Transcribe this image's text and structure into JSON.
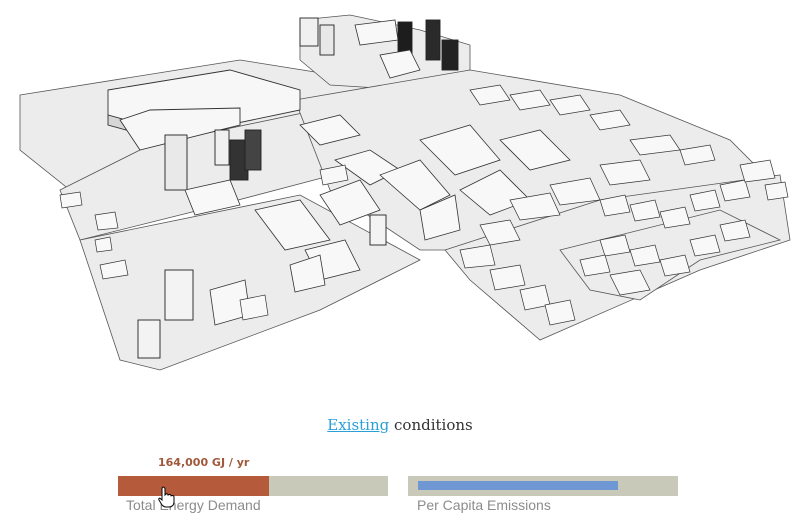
{
  "scene": {
    "description_icon": "3d-city-block-model"
  },
  "caption": {
    "link_text": "Existing",
    "rest_text": " conditions"
  },
  "metrics": {
    "energy": {
      "label": "Total Energy Demand",
      "value_text": "164,000 GJ / yr",
      "fill_fraction": 0.56,
      "color": "#b65a3c"
    },
    "emissions": {
      "label": "Per Capita Emissions",
      "fill_fraction": 0.74,
      "color": "#6f97d3"
    },
    "track_color": "#c8c9b8"
  },
  "cursor": {
    "icon": "hand-pointer-icon"
  }
}
